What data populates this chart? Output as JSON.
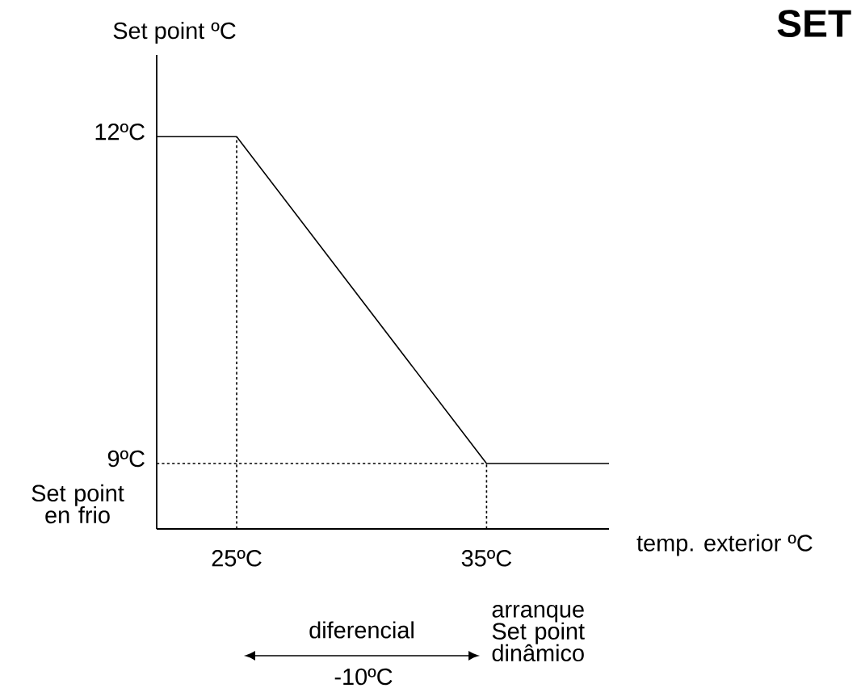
{
  "chart_data": {
    "type": "line",
    "title": "SET",
    "xlabel": "temp. exterior ºC",
    "ylabel": "Set point ºC",
    "xlim": [
      21.8,
      39.9
    ],
    "ylim": [
      8.4,
      12.75
    ],
    "xticks": [
      {
        "value": 25,
        "label": "25ºC"
      },
      {
        "value": 35,
        "label": "35ºC"
      }
    ],
    "yticks": [
      {
        "value": 9,
        "label": "9ºC"
      },
      {
        "value": 12,
        "label": "12ºC"
      }
    ],
    "series": [
      {
        "color": "#000000",
        "line_style": "solid",
        "x": [
          21.8,
          25,
          35,
          39.9
        ],
        "values": [
          12,
          12,
          9,
          9
        ]
      },
      {
        "color": "#000000",
        "line_style": "dotted",
        "x": [
          25,
          25
        ],
        "values": [
          8.4,
          12
        ]
      },
      {
        "color": "#000000",
        "line_style": "dotted",
        "x": [
          35,
          35
        ],
        "values": [
          8.4,
          9
        ]
      },
      {
        "color": "#000000",
        "line_style": "dotted",
        "x": [
          21.8,
          35
        ],
        "values": [
          9,
          9
        ]
      }
    ],
    "annotations": [
      "Set point en frio",
      "arranque Set point dinâmico",
      "diferencial",
      "-10ºC"
    ]
  }
}
